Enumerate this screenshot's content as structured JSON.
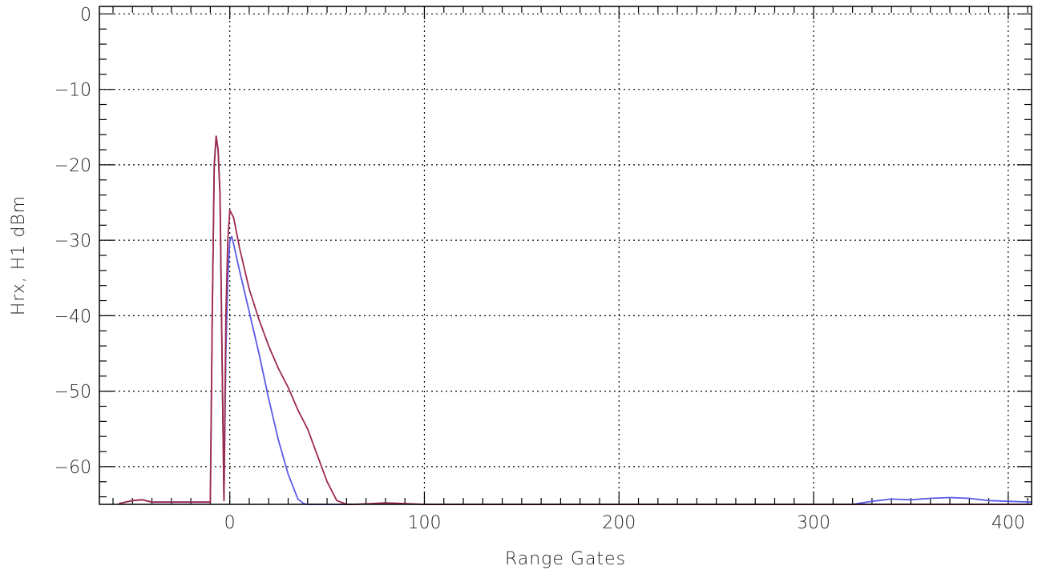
{
  "chart_data": {
    "type": "line",
    "title": "",
    "xlabel": "Range Gates",
    "ylabel": "Hrx, H1 dBm",
    "xlim": [
      -67,
      412
    ],
    "ylim": [
      -65,
      1
    ],
    "x_ticks": [
      0,
      100,
      200,
      300,
      400
    ],
    "y_ticks": [
      0,
      -10,
      -20,
      -30,
      -40,
      -50,
      -60
    ],
    "x_tick_labels": [
      "0",
      "100",
      "200",
      "300",
      "400"
    ],
    "y_tick_labels": [
      "0",
      "−10",
      "−20",
      "−30",
      "−40",
      "−50",
      "−60"
    ],
    "x_minor_step": 10,
    "y_minor_step": 2,
    "grid": true,
    "legend": "none",
    "series": [
      {
        "color": "#5a5ae6",
        "x": [
          -57,
          -50,
          -45,
          -40,
          -30,
          -20,
          -10,
          -9,
          -8,
          -7,
          -6,
          -5,
          -4,
          -3,
          -2,
          -1,
          0,
          1,
          2,
          5,
          10,
          15,
          20,
          25,
          30,
          35,
          38,
          40,
          45,
          50,
          60,
          80,
          100,
          150,
          200,
          250,
          300,
          320,
          330,
          340,
          350,
          360,
          370,
          380,
          390,
          400,
          412
        ],
        "y": [
          -64.9,
          -64.5,
          -64.4,
          -64.7,
          -64.7,
          -64.7,
          -64.7,
          -40,
          -20,
          -16.2,
          -18,
          -24,
          -45,
          -64.5,
          -45,
          -35,
          -30,
          -29.5,
          -30.5,
          -34,
          -39.5,
          -45,
          -51,
          -56.5,
          -61,
          -64.3,
          -64.9,
          -65,
          -65,
          -65,
          -65,
          -64.9,
          -65,
          -65,
          -65,
          -65,
          -65,
          -65,
          -64.6,
          -64.3,
          -64.4,
          -64.2,
          -64.1,
          -64.2,
          -64.5,
          -64.6,
          -64.7
        ]
      },
      {
        "color": "#9e2a4c",
        "x": [
          -57,
          -50,
          -45,
          -40,
          -30,
          -20,
          -10,
          -9,
          -8,
          -7,
          -6,
          -5,
          -4,
          -3,
          -2,
          -1,
          0,
          2,
          5,
          10,
          15,
          20,
          25,
          30,
          35,
          40,
          45,
          50,
          55,
          60,
          65,
          80,
          100,
          150,
          200,
          250,
          300,
          350,
          412
        ],
        "y": [
          -64.9,
          -64.5,
          -64.4,
          -64.7,
          -64.7,
          -64.7,
          -64.7,
          -40,
          -20,
          -16.2,
          -18,
          -24,
          -45,
          -64.5,
          -40,
          -30,
          -26,
          -27,
          -31,
          -36.5,
          -40.5,
          -44,
          -47,
          -49.5,
          -52.5,
          -55,
          -58.5,
          -62,
          -64.5,
          -65,
          -65,
          -64.8,
          -65,
          -65,
          -65,
          -65,
          -65,
          -65,
          -65
        ]
      }
    ]
  }
}
